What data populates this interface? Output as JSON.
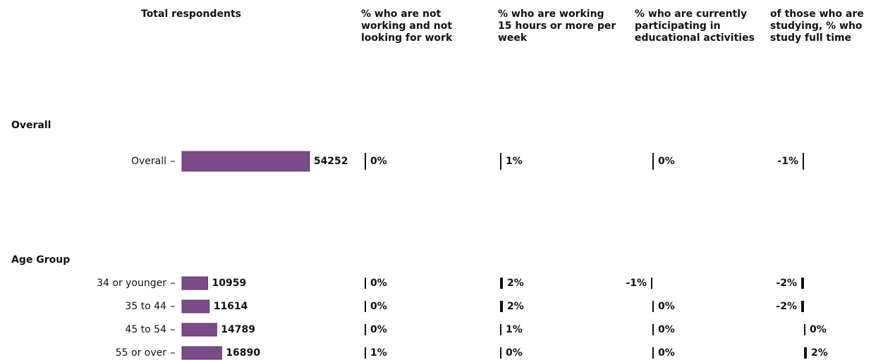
{
  "chart_data": {
    "type": "bar-table",
    "color": "#7b4c87",
    "groups": [
      {
        "name": "Overall",
        "categories": [
          "Overall"
        ]
      },
      {
        "name": "Age Group",
        "categories": [
          "34 or younger",
          "35 to 44",
          "45 to 54",
          "55 or over"
        ]
      }
    ],
    "columns": [
      {
        "title": "Total respondents",
        "xlim": [
          0,
          60000
        ],
        "values": [
          54252,
          10959,
          11614,
          14789,
          16890
        ]
      },
      {
        "title": "% who are not working and not looking for work",
        "xlim": [
          -50,
          50
        ],
        "values": [
          0,
          0,
          0,
          0,
          1
        ],
        "value_labels": [
          "0%",
          "0%",
          "0%",
          "0%",
          "1%"
        ]
      },
      {
        "title": "% who are working 15 hours or more per week",
        "xlim": [
          -50,
          50
        ],
        "values": [
          1,
          2,
          2,
          1,
          0
        ],
        "value_labels": [
          "1%",
          "2%",
          "2%",
          "1%",
          "0%"
        ]
      },
      {
        "title": "% who are currently participating in educational activities",
        "xlim": [
          -50,
          50
        ],
        "values": [
          0,
          -1,
          0,
          0,
          0
        ],
        "value_labels": [
          "0%",
          "-1%",
          "0%",
          "0%",
          "0%"
        ]
      },
      {
        "title": "of those who are studying, % who study full time",
        "xlim": [
          -50,
          50
        ],
        "values": [
          -1,
          -2,
          -2,
          0,
          2
        ],
        "value_labels": [
          "-1%",
          "-2%",
          "-2%",
          "0%",
          "2%"
        ]
      }
    ]
  }
}
